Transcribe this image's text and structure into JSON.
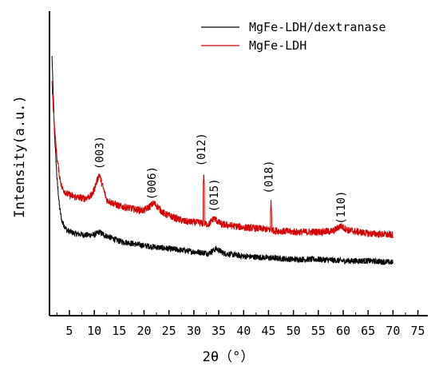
{
  "chart_data": {
    "type": "line",
    "title": "",
    "xlabel": "2θ（°）",
    "ylabel": "Intensity(a.u.)",
    "xlim": [
      1,
      77
    ],
    "ylim": [
      0,
      100
    ],
    "x_ticks": [
      5,
      10,
      15,
      20,
      25,
      30,
      35,
      40,
      45,
      50,
      55,
      60,
      65,
      70,
      75
    ],
    "x_tick_labels": [
      "5",
      "10",
      "15",
      "20",
      "25",
      "30",
      "35",
      "40",
      "45",
      "50",
      "55",
      "60",
      "65",
      "70",
      "75"
    ],
    "y_tick_labels": [],
    "grid": false,
    "legend": {
      "position": "top-right"
    },
    "series": [
      {
        "name": "MgFe-LDH/dextranase",
        "color": "#000000",
        "baseline": [
          [
            1.5,
            85
          ],
          [
            2.0,
            60
          ],
          [
            2.5,
            45
          ],
          [
            3.0,
            36
          ],
          [
            3.5,
            31
          ],
          [
            4.5,
            28
          ],
          [
            6,
            27
          ],
          [
            8,
            26.5
          ],
          [
            10,
            26.5
          ],
          [
            11,
            27.5
          ],
          [
            12,
            26.5
          ],
          [
            15,
            24.5
          ],
          [
            20,
            23
          ],
          [
            25,
            22
          ],
          [
            30,
            21
          ],
          [
            33,
            20.5
          ],
          [
            34.5,
            22
          ],
          [
            36,
            20.5
          ],
          [
            40,
            19.5
          ],
          [
            45,
            19
          ],
          [
            50,
            18.5
          ],
          [
            55,
            18.5
          ],
          [
            60,
            18
          ],
          [
            65,
            18
          ],
          [
            70,
            17.5
          ]
        ],
        "noise": 1.0
      },
      {
        "name": "MgFe-LDH",
        "color": "#d40000",
        "baseline": [
          [
            1.5,
            76
          ],
          [
            2.0,
            62
          ],
          [
            2.5,
            52
          ],
          [
            3.0,
            46
          ],
          [
            3.5,
            42
          ],
          [
            4.5,
            40
          ],
          [
            6,
            39
          ],
          [
            8,
            38.5
          ],
          [
            9.5,
            39.5
          ],
          [
            10.5,
            44
          ],
          [
            11,
            46.5
          ],
          [
            11.5,
            43.5
          ],
          [
            12.5,
            38
          ],
          [
            15,
            36
          ],
          [
            18,
            35
          ],
          [
            20,
            34.5
          ],
          [
            22,
            37
          ],
          [
            24,
            33.5
          ],
          [
            28,
            31
          ],
          [
            31,
            30.5
          ],
          [
            33,
            30
          ],
          [
            34,
            32
          ],
          [
            35.5,
            30
          ],
          [
            40,
            29
          ],
          [
            44,
            28.5
          ],
          [
            46,
            28
          ],
          [
            50,
            27.5
          ],
          [
            55,
            27.5
          ],
          [
            58,
            27.8
          ],
          [
            59.5,
            29.5
          ],
          [
            61,
            28
          ],
          [
            65,
            27
          ],
          [
            70,
            26.5
          ]
        ],
        "spikes": [
          [
            32.0,
            47
          ],
          [
            45.5,
            38
          ]
        ],
        "noise": 1.2
      }
    ],
    "annotations": [
      {
        "text": "(003)",
        "x": 11.0,
        "y": 48
      },
      {
        "text": "(006)",
        "x": 21.5,
        "y": 38
      },
      {
        "text": "(012)",
        "x": 31.5,
        "y": 49
      },
      {
        "text": "(015)",
        "x": 34.0,
        "y": 34
      },
      {
        "text": "(018)",
        "x": 45.0,
        "y": 40
      },
      {
        "text": "(110)",
        "x": 59.5,
        "y": 30
      }
    ]
  }
}
